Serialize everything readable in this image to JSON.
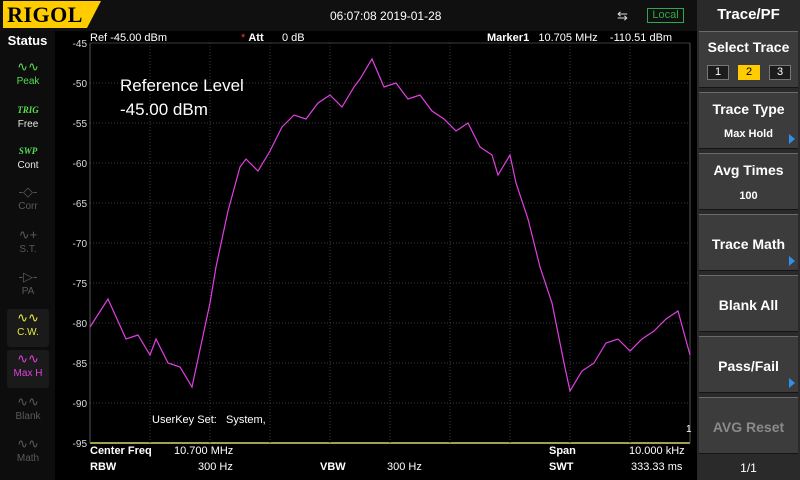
{
  "header": {
    "logo": "RIGOL",
    "datetime": "06:07:08 2019-01-28",
    "usb_icon": "usb-icon",
    "remote_state": "Local"
  },
  "status": {
    "title": "Status",
    "items": [
      {
        "icon": "peak-wave-icon",
        "glyph": "∿∿",
        "label": "Peak"
      },
      {
        "icon": "trig-icon",
        "glyph": "TRIG",
        "label": "Free"
      },
      {
        "icon": "swp-icon",
        "glyph": "SWP",
        "label": "Cont"
      },
      {
        "icon": "corr-icon",
        "glyph": "-◇-",
        "label": "Corr"
      },
      {
        "icon": "st-icon",
        "glyph": "∿+",
        "label": "S.T."
      },
      {
        "icon": "pa-icon",
        "glyph": "-▷-",
        "label": "PA"
      },
      {
        "icon": "cw-icon",
        "glyph": "∿∿",
        "label": "C.W."
      },
      {
        "icon": "maxhold-icon",
        "glyph": "∿∿",
        "label": "Max H"
      },
      {
        "icon": "blank-icon",
        "glyph": "∿∿",
        "label": "Blank"
      },
      {
        "icon": "math-icon",
        "glyph": "∿∿",
        "label": "Math"
      }
    ]
  },
  "info": {
    "ref_label": "Ref",
    "ref_value": "-45.00 dBm",
    "att_label": "Att",
    "att_value": "0 dB",
    "marker_label": "Marker1",
    "marker_freq": "10.705 MHz",
    "marker_amp": "-110.51 dBm"
  },
  "overlay": {
    "ref_level_title": "Reference Level",
    "ref_level_value": "-45.00 dBm",
    "userkey_label": "UserKey Set:",
    "userkey_value": "System,",
    "marker_number": "1"
  },
  "bottom": {
    "center_label": "Center Freq",
    "center_value": "10.700 MHz",
    "span_label": "Span",
    "span_value": "10.000 kHz",
    "rbw_label": "RBW",
    "rbw_value": "300 Hz",
    "vbw_label": "VBW",
    "vbw_value": "300 Hz",
    "swt_label": "SWT",
    "swt_value": "333.33 ms"
  },
  "panel": {
    "title": "Trace/PF",
    "select_trace": "Select Trace",
    "traces": [
      "1",
      "2",
      "3"
    ],
    "active_trace": "2",
    "trace_type": "Trace Type",
    "trace_type_value": "Max Hold",
    "avg_times": "Avg Times",
    "avg_times_value": "100",
    "trace_math": "Trace Math",
    "blank_all": "Blank All",
    "pass_fail": "Pass/Fail",
    "avg_reset": "AVG Reset",
    "page": "1/1"
  },
  "colors": {
    "trace": "#e040e0",
    "grid": "#3a3a3a",
    "accent": "#ffcc00",
    "arrow": "#2f8ff0",
    "local": "#2ea84c"
  },
  "chart_data": {
    "type": "line",
    "title": "",
    "xlabel": "",
    "ylabel": "",
    "ylim": [
      -95,
      -45
    ],
    "y_ticks": [
      "-45",
      "-50",
      "-55",
      "-60",
      "-65",
      "-70",
      "-75",
      "-80",
      "-85",
      "-90",
      "-95"
    ],
    "x_divisions": 10,
    "grid": true,
    "series": [
      {
        "x": [
          0,
          0.3,
          0.6,
          0.8,
          1.0,
          1.1,
          1.3,
          1.5,
          1.7,
          1.8,
          2.0,
          2.1,
          2.3,
          2.5,
          2.6,
          2.8,
          3.0,
          3.2,
          3.4,
          3.6,
          3.8,
          4.0,
          4.2,
          4.4,
          4.5,
          4.7,
          4.9,
          5.1,
          5.3,
          5.5,
          5.7,
          5.9,
          6.1,
          6.3,
          6.5,
          6.7,
          6.8,
          7.0,
          7.1,
          7.3,
          7.5,
          7.7,
          7.9,
          8.0,
          8.2,
          8.4,
          8.6,
          8.8,
          9.0,
          9.2,
          9.4,
          9.6,
          9.8,
          10.0
        ],
        "values": [
          -80.5,
          -77.0,
          -82.0,
          -81.5,
          -84.0,
          -82.0,
          -85.0,
          -85.5,
          -88.0,
          -84.5,
          -77.5,
          -73.0,
          -66.0,
          -60.5,
          -59.5,
          -61.0,
          -58.5,
          -55.5,
          -54.0,
          -54.5,
          -52.5,
          -51.5,
          -53.0,
          -50.5,
          -49.5,
          -47.0,
          -50.5,
          -50.0,
          -52.0,
          -51.5,
          -53.5,
          -54.5,
          -56.0,
          -55.0,
          -58.0,
          -59.0,
          -61.5,
          -59.0,
          -62.5,
          -67.0,
          -73.0,
          -77.5,
          -85.0,
          -88.5,
          -86.0,
          -85.0,
          -82.5,
          -82.0,
          -83.5,
          -82.0,
          -81.0,
          -79.5,
          -78.5,
          -84.0
        ]
      }
    ]
  }
}
